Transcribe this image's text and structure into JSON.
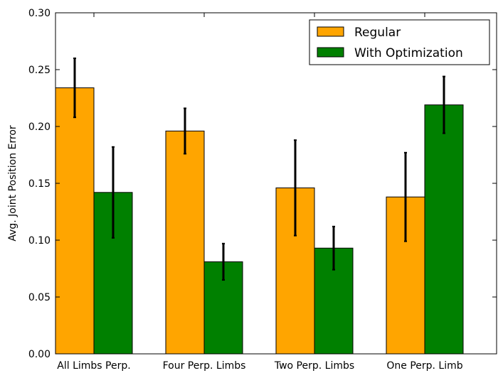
{
  "chart_data": {
    "type": "bar",
    "title": "",
    "xlabel": "",
    "ylabel": "Avg. Joint Position Error",
    "ylim": [
      0,
      0.3
    ],
    "yticks": [
      "0.00",
      "0.05",
      "0.10",
      "0.15",
      "0.20",
      "0.25",
      "0.30"
    ],
    "grid": false,
    "legend_position": "top-right",
    "categories": [
      "All Limbs Perp.",
      "Four Perp. Limbs",
      "Two Perp. Limbs",
      "One Perp. Limb"
    ],
    "series": [
      {
        "name": "Regular",
        "color": "#ffa500",
        "values": [
          0.234,
          0.196,
          0.146,
          0.138
        ],
        "errors": [
          0.026,
          0.02,
          0.042,
          0.039
        ]
      },
      {
        "name": "With Optimization",
        "color": "#008000",
        "values": [
          0.142,
          0.081,
          0.093,
          0.219
        ],
        "errors": [
          0.04,
          0.016,
          0.019,
          0.025
        ]
      }
    ]
  }
}
